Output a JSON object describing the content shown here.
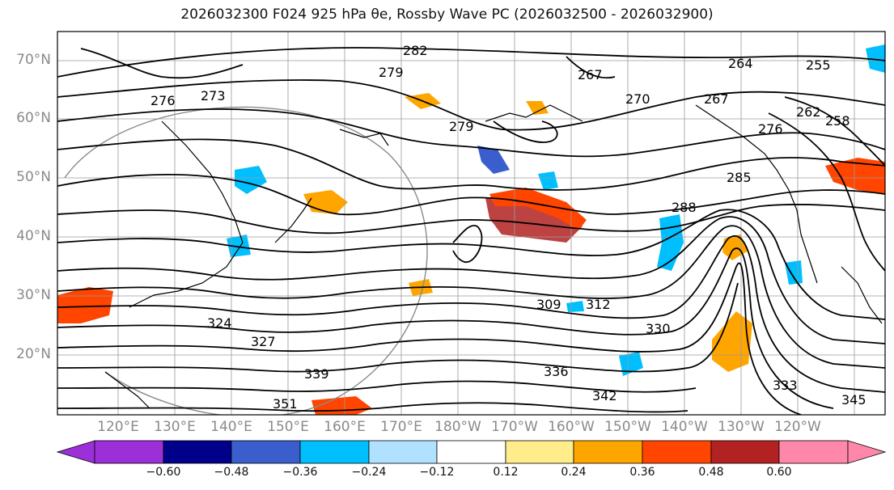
{
  "title": "2026032300 F024 925 hPa θe, Rossby Wave PC (2026032500 - 2026032900)",
  "map": {
    "lat_labels": [
      "70°N",
      "60°N",
      "50°N",
      "40°N",
      "30°N",
      "20°N"
    ],
    "lon_labels": [
      "120°E",
      "130°E",
      "140°E",
      "150°E",
      "160°E",
      "170°E",
      "180°W",
      "170°W",
      "160°W",
      "150°W",
      "140°W",
      "130°W",
      "120°W"
    ],
    "contour_labels": [
      "282",
      "279",
      "273",
      "276",
      "267",
      "264",
      "255",
      "270",
      "267",
      "262",
      "258",
      "276",
      "285",
      "288",
      "279",
      "309",
      "312",
      "324",
      "327",
      "330",
      "339",
      "336",
      "342",
      "351",
      "333",
      "345"
    ]
  },
  "colorbar": {
    "tick_labels": [
      "−0.60",
      "−0.48",
      "−0.36",
      "−0.24",
      "−0.12",
      "0.12",
      "0.24",
      "0.36",
      "0.48",
      "0.60"
    ],
    "colors": [
      "#9b30d9",
      "#00008b",
      "#3a5fcd",
      "#00bfff",
      "#b0e2ff",
      "#ffffff",
      "#ffec8b",
      "#ffa500",
      "#ff4500",
      "#b22222",
      "#ff88aa"
    ]
  },
  "fill_colors": {
    "neg_light": "#00bfff",
    "neg_medium": "#3a5fcd",
    "pos_light": "#ffa500",
    "pos_medium": "#ff4500",
    "pos_strong": "#b22222"
  }
}
